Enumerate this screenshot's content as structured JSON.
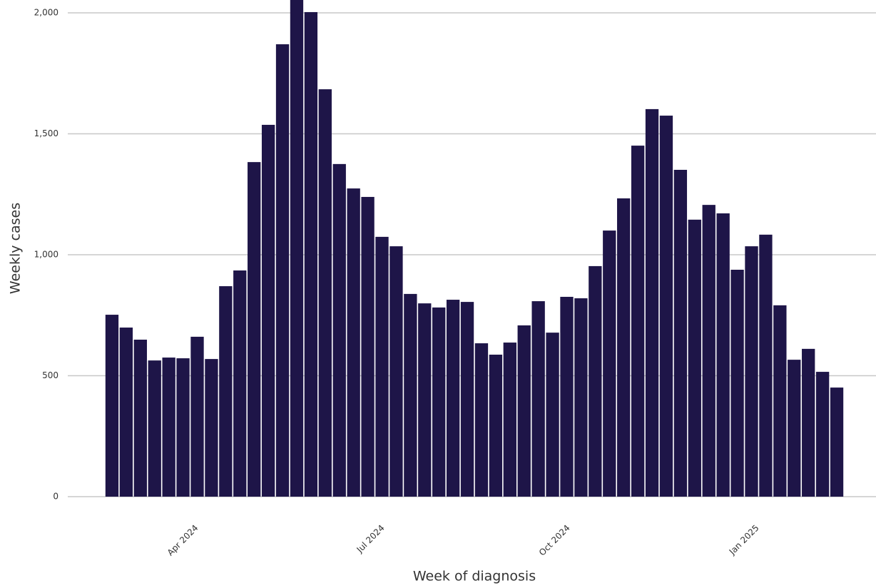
{
  "chart_data": {
    "type": "bar",
    "y_label": "Weekly cases",
    "x_label": "Week of diagnosis",
    "color": "#1e1548",
    "grid": true,
    "categories": [
      null,
      null,
      null,
      null,
      null,
      null,
      null,
      null,
      null,
      null,
      null,
      null,
      null,
      null,
      null,
      null,
      null,
      null,
      null,
      null,
      null,
      null,
      null,
      null,
      null,
      null,
      null,
      null,
      null,
      null,
      null,
      null,
      null,
      null,
      null,
      null,
      null,
      null,
      null,
      null,
      null,
      null,
      null,
      null,
      null,
      null,
      null,
      null,
      null,
      null,
      null,
      null
    ],
    "values": [
      752,
      699,
      649,
      563,
      575,
      572,
      661,
      569,
      870,
      935,
      1383,
      1537,
      1870,
      2053,
      2003,
      1684,
      1375,
      1274,
      1239,
      1074,
      1035,
      838,
      799,
      782,
      814,
      805,
      634,
      587,
      637,
      708,
      808,
      678,
      826,
      820,
      953,
      1100,
      1233,
      1451,
      1602,
      1575,
      1351,
      1145,
      1206,
      1171,
      938,
      1035,
      1083,
      791,
      566,
      611,
      516,
      451
    ],
    "xlim": [
      0,
      52
    ],
    "xticks": [
      {
        "value": 5.77,
        "label": "Apr 2024"
      },
      {
        "value": 18.88,
        "label": "Jul 2024"
      },
      {
        "value": 31.93,
        "label": "Oct 2024"
      },
      {
        "value": 45.23,
        "label": "Jan 2025"
      }
    ],
    "ylim": [
      0,
      2053
    ],
    "yticks": [
      0,
      {
        "value": 500,
        "label": "500"
      },
      {
        "value": 1000,
        "label": "1,000"
      },
      {
        "value": 1500,
        "label": "1,500"
      },
      {
        "value": 2000,
        "label": "2,000"
      }
    ]
  }
}
